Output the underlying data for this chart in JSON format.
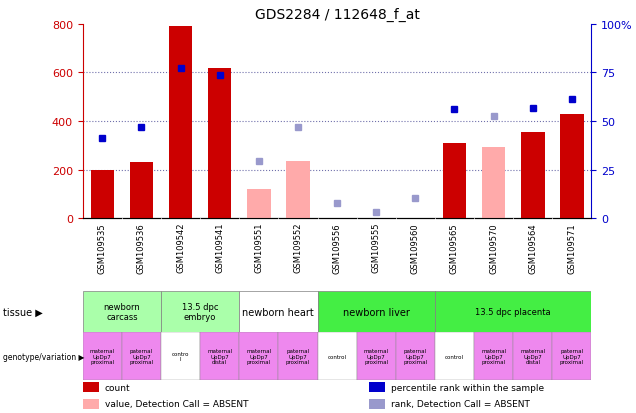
{
  "title": "GDS2284 / 112648_f_at",
  "samples": [
    "GSM109535",
    "GSM109536",
    "GSM109542",
    "GSM109541",
    "GSM109551",
    "GSM109552",
    "GSM109556",
    "GSM109555",
    "GSM109560",
    "GSM109565",
    "GSM109570",
    "GSM109564",
    "GSM109571"
  ],
  "count_values": [
    200,
    230,
    790,
    620,
    null,
    null,
    null,
    null,
    null,
    310,
    null,
    355,
    430
  ],
  "count_absent": [
    null,
    null,
    null,
    null,
    120,
    235,
    null,
    null,
    null,
    null,
    295,
    null,
    null
  ],
  "rank_values": [
    330,
    375,
    620,
    590,
    null,
    null,
    null,
    null,
    null,
    450,
    null,
    455,
    490
  ],
  "rank_absent": [
    null,
    null,
    null,
    null,
    235,
    375,
    65,
    25,
    85,
    null,
    420,
    null,
    null
  ],
  "ylim_left": [
    0,
    800
  ],
  "ylim_right": [
    0,
    100
  ],
  "left_ticks": [
    0,
    200,
    400,
    600,
    800
  ],
  "right_ticks": [
    0,
    25,
    50,
    75,
    100
  ],
  "right_tick_labels": [
    "0",
    "25",
    "50",
    "75",
    "100%"
  ],
  "tissue_groups": [
    {
      "label": "newborn\ncarcass",
      "start": 0,
      "end": 2,
      "color": "#aaffaa"
    },
    {
      "label": "13.5 dpc\nembryo",
      "start": 2,
      "end": 4,
      "color": "#aaffaa"
    },
    {
      "label": "newborn heart",
      "start": 4,
      "end": 6,
      "color": "#ffffff"
    },
    {
      "label": "newborn liver",
      "start": 6,
      "end": 9,
      "color": "#44ee44"
    },
    {
      "label": "13.5 dpc placenta",
      "start": 9,
      "end": 13,
      "color": "#44ee44"
    }
  ],
  "genotype_labels": [
    "maternal\nUpDp7\nproximal",
    "paternal\nUpDp7\nproximal",
    "contro\nl",
    "maternal\nUpDp7\ndistal",
    "maternal\nUpDp7\nproximal",
    "paternal\nUpDp7\nproximal",
    "control",
    "maternal\nUpDp7\nproximal",
    "paternal\nUpDp7\nproximal",
    "control",
    "maternal\nUpDp7\nproximal",
    "maternal\nUpDp7\ndistal",
    "paternal\nUpDp7\nproximal"
  ],
  "genotype_colors": [
    "#ee88ee",
    "#ee88ee",
    "#ffffff",
    "#ee88ee",
    "#ee88ee",
    "#ee88ee",
    "#ffffff",
    "#ee88ee",
    "#ee88ee",
    "#ffffff",
    "#ee88ee",
    "#ee88ee",
    "#ee88ee"
  ],
  "bar_color": "#cc0000",
  "bar_absent_color": "#ffaaaa",
  "dot_color": "#0000cc",
  "dot_absent_color": "#9999cc",
  "left_axis_color": "#cc0000",
  "right_axis_color": "#0000cc",
  "xtick_bg": "#cccccc",
  "plot_bg": "#ffffff"
}
